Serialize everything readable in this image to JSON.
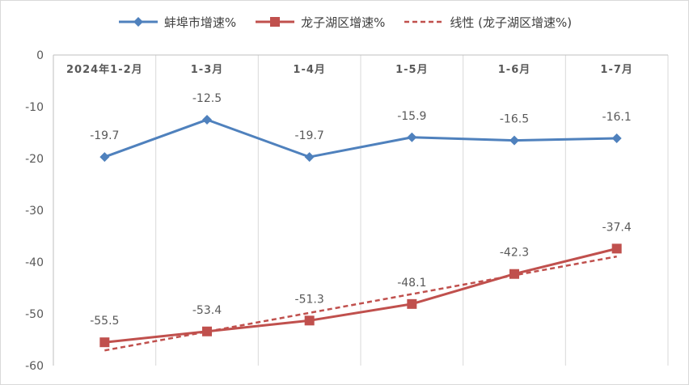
{
  "chart_data": {
    "type": "line",
    "categories": [
      "2024年1-2月",
      "1-3月",
      "1-4月",
      "1-5月",
      "1-6月",
      "1-7月"
    ],
    "series": [
      {
        "name": "蚌埠市增速%",
        "values": [
          -19.7,
          -12.5,
          -19.7,
          -15.9,
          -16.5,
          -16.1
        ],
        "labels": [
          "-19.7",
          "-12.5",
          "-19.7",
          "-15.9",
          "-16.5",
          "-16.1"
        ],
        "color": "#4f81bd",
        "marker": "diamond"
      },
      {
        "name": "龙子湖区增速%",
        "values": [
          -55.5,
          -53.4,
          -51.3,
          -48.1,
          -42.3,
          -37.4
        ],
        "labels": [
          "-55.5",
          "-53.4",
          "-51.3",
          "-48.1",
          "-42.3",
          "-37.4"
        ],
        "color": "#c0504d",
        "marker": "square"
      }
    ],
    "trendline": {
      "name": "线性 (龙子湖区增速%)",
      "of_series": "龙子湖区增速%",
      "type": "linear",
      "color": "#c0504d",
      "dashed": true
    },
    "ylim": [
      -60,
      0
    ],
    "yticks": [
      0,
      -10,
      -20,
      -30,
      -40,
      -50,
      -60
    ],
    "ytick_labels": [
      "0",
      "-10",
      "-20",
      "-30",
      "-40",
      "-50",
      "-60"
    ],
    "x_axis_position": "top",
    "grid": "vertical",
    "legend_position": "top"
  }
}
